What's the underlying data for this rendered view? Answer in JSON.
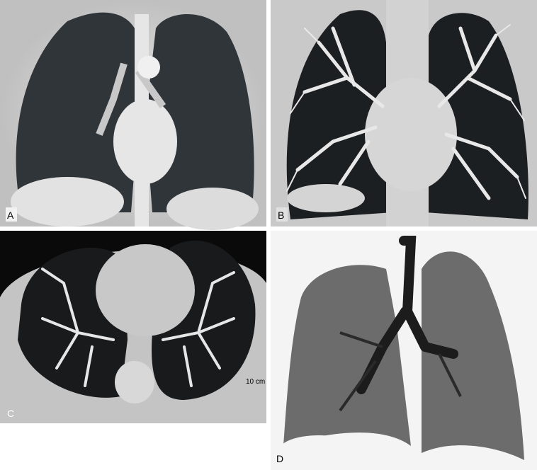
{
  "panels": [
    {
      "label": "A"
    },
    {
      "label": "B"
    },
    {
      "label": "C",
      "scale_label": "10 cm"
    },
    {
      "label": "D"
    }
  ]
}
